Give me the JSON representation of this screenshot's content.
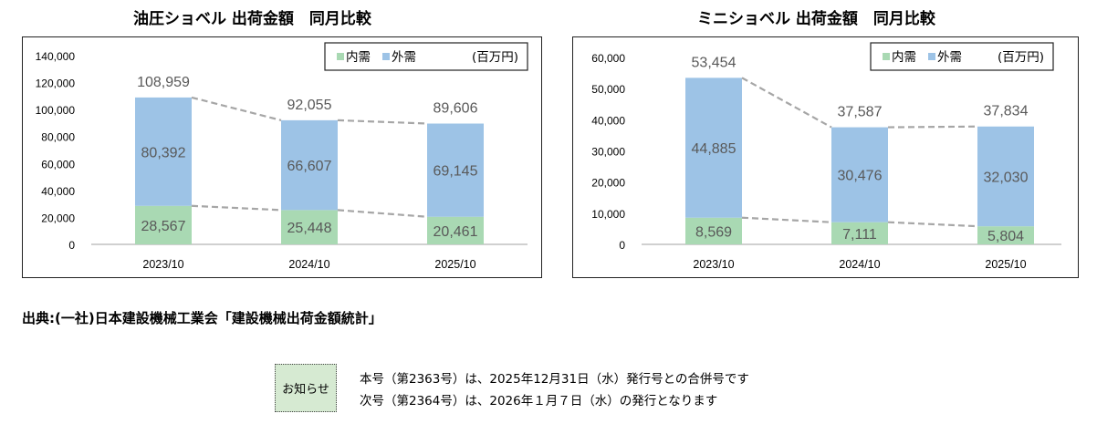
{
  "charts": [
    {
      "id": "hydraulic",
      "title": "油圧ショベル 出荷金額　同月比較",
      "legend": {
        "domestic": "内需",
        "export": "外需",
        "unit": "(百万円)"
      },
      "colors": {
        "domestic": "#a9d9b3",
        "export": "#9dc3e6",
        "dash": "#a6a6a6",
        "axis": "#c0c0c0",
        "text": "#595959"
      }
    },
    {
      "id": "mini",
      "title": "ミニショベル 出荷金額　同月比較",
      "legend": {
        "domestic": "内需",
        "export": "外需",
        "unit": "(百万円)"
      },
      "colors": {
        "domestic": "#a9d9b3",
        "export": "#9dc3e6",
        "dash": "#a6a6a6",
        "axis": "#c0c0c0",
        "text": "#595959"
      }
    }
  ],
  "chart_data": [
    {
      "type": "bar",
      "stacked": true,
      "title": "油圧ショベル 出荷金額　同月比較",
      "categories": [
        "2023/10",
        "2024/10",
        "2025/10"
      ],
      "series": [
        {
          "name": "内需",
          "values": [
            28567,
            25448,
            20461
          ],
          "labels": [
            "28,567",
            "25,448",
            "20,461"
          ]
        },
        {
          "name": "外需",
          "values": [
            80392,
            66607,
            69145
          ],
          "labels": [
            "80,392",
            "66,607",
            "69,145"
          ]
        }
      ],
      "totals": [
        108959,
        92055,
        89606
      ],
      "total_labels": [
        "108,959",
        "92,055",
        "89,606"
      ],
      "ylim": [
        0,
        140000
      ],
      "yticks": [
        "0",
        "20,000",
        "40,000",
        "60,000",
        "80,000",
        "100,000",
        "120,000",
        "140,000"
      ],
      "unit": "(百万円)",
      "grid": false,
      "legend_position": "top-right"
    },
    {
      "type": "bar",
      "stacked": true,
      "title": "ミニショベル 出荷金額　同月比較",
      "categories": [
        "2023/10",
        "2024/10",
        "2025/10"
      ],
      "series": [
        {
          "name": "内需",
          "values": [
            8569,
            7111,
            5804
          ],
          "labels": [
            "8,569",
            "7,111",
            "5,804"
          ]
        },
        {
          "name": "外需",
          "values": [
            44885,
            30476,
            32030
          ],
          "labels": [
            "44,885",
            "30,476",
            "32,030"
          ]
        }
      ],
      "totals": [
        53454,
        37587,
        37834
      ],
      "total_labels": [
        "53,454",
        "37,587",
        "37,834"
      ],
      "ylim": [
        0,
        60000
      ],
      "yticks": [
        "0",
        "10,000",
        "20,000",
        "30,000",
        "40,000",
        "50,000",
        "60,000"
      ],
      "unit": "(百万円)",
      "grid": false,
      "legend_position": "top-right"
    }
  ],
  "source": "出典:(一社)日本建設機械工業会「建設機械出荷金額統計」",
  "notice": {
    "badge": "お知らせ",
    "lines": [
      "本号（第2363号）は、2025年12月31日（水）発行号との合併号です",
      "次号（第2364号）は、2026年１月７日（水）の発行となります"
    ]
  }
}
